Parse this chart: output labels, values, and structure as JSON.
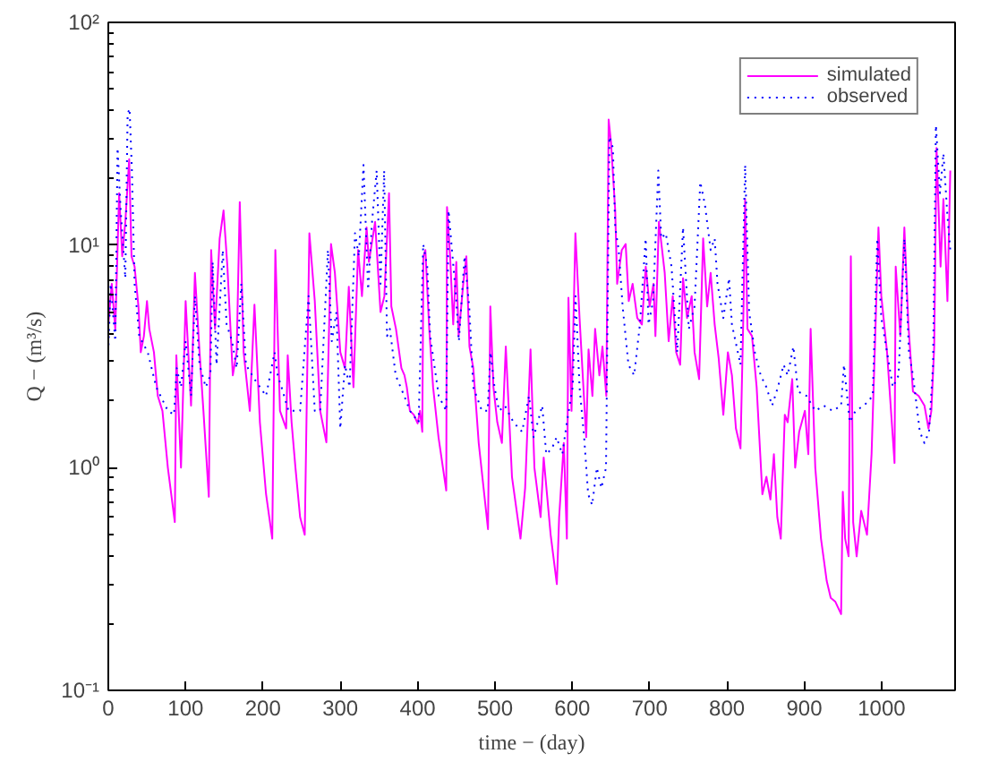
{
  "chart_data": {
    "type": "line",
    "xlabel": "time − (day)",
    "ylabel": "Q − (m³/s)",
    "log": "y",
    "grid": false,
    "legend": "top right",
    "xlim": [
      0,
      1095
    ],
    "xticks": [
      0,
      100,
      200,
      300,
      400,
      500,
      600,
      700,
      800,
      900,
      1000
    ],
    "ylim": [
      0.1,
      100
    ],
    "yticks": [
      {
        "value": 0.1,
        "label": "10⁻¹"
      },
      {
        "value": 1,
        "label": "10⁰"
      },
      {
        "value": 10,
        "label": "10¹"
      },
      {
        "value": 100,
        "label": "10²"
      }
    ],
    "series": [
      {
        "name": "simulated",
        "color": "#ff00ff",
        "line_style": "solid",
        "x": [
          0,
          4.5,
          9,
          14,
          18,
          22,
          27,
          30,
          34,
          39,
          42,
          46,
          50,
          53,
          59,
          64,
          70,
          77,
          86,
          88,
          94,
          100,
          107,
          112,
          118,
          123,
          130,
          133,
          138,
          144,
          149,
          154,
          161,
          166,
          170,
          175,
          183,
          189,
          196,
          204,
          212,
          216,
          222,
          230,
          232,
          237,
          242,
          248,
          254,
          260,
          267,
          274,
          282,
          288,
          293,
          300,
          306,
          311,
          317,
          323,
          328,
          334,
          337,
          345,
          352,
          357,
          363,
          366,
          372,
          379,
          383,
          386,
          390,
          395,
          400,
          403,
          406,
          407.5,
          410,
          415,
          420,
          427,
          437,
          438,
          442,
          446,
          450,
          453,
          459,
          463,
          467,
          472,
          479,
          491,
          494,
          498,
          503,
          509,
          514,
          522,
          533,
          539,
          546,
          551,
          559,
          563,
          572,
          580,
          583,
          589,
          593,
          595,
          599,
          604,
          609.4,
          615,
          618,
          621,
          626,
          629.5,
          635,
          639,
          644,
          647,
          650,
          655.5,
          658,
          664,
          669,
          673,
          678,
          684,
          690,
          695,
          700,
          705,
          707.5,
          712,
          719.5,
          724.6,
          729.9,
          734.3,
          739.5,
          743.2,
          748.4,
          754.4,
          758.1,
          764,
          769.2,
          774.4,
          778.9,
          784.1,
          789.3,
          795.3,
          801.2,
          806.4,
          811.6,
          817.5,
          821.3,
          823.5,
          826.5,
          832.4,
          838.4,
          845.8,
          851,
          856.2,
          860.7,
          865.1,
          869.6,
          874.8,
          878.5,
          884.4,
          888.2,
          893.4,
          900.8,
          905.2,
          908.2,
          914.2,
          921.6,
          929,
          934.2,
          940.2,
          947.6,
          949.8,
          952.8,
          957.3,
          960.2,
          963.2,
          967.7,
          973.6,
          981.1,
          987,
          992.2,
          995.9,
          999.6,
          1007,
          1016.7,
          1018.2,
          1024.2,
          1029.4,
          1034.6,
          1040.5,
          1048,
          1055.4,
          1060.6,
          1064.3,
          1068,
          1071,
          1076.2,
          1079.9,
          1085.1,
          1088.8
        ],
        "values": [
          4.4,
          6.7,
          4.2,
          17.1,
          8.9,
          12.7,
          24.3,
          8.9,
          8.0,
          5.3,
          3.3,
          3.9,
          5.6,
          4.2,
          3.3,
          2.1,
          1.8,
          1.0,
          0.57,
          3.2,
          1.0,
          5.6,
          1.9,
          7.5,
          3.3,
          1.8,
          0.74,
          9.5,
          4.2,
          10.7,
          14.3,
          8.0,
          2.6,
          3.3,
          15.6,
          3.3,
          1.8,
          5.4,
          1.6,
          0.76,
          0.48,
          9.5,
          1.8,
          1.5,
          3.2,
          1.6,
          1.0,
          0.6,
          0.5,
          11.3,
          5.6,
          1.8,
          1.3,
          10.1,
          7.5,
          3.3,
          2.8,
          6.5,
          2.3,
          9.5,
          5.9,
          12.0,
          8.4,
          12.7,
          5.0,
          5.9,
          17.1,
          5.3,
          4.2,
          2.8,
          2.6,
          2.3,
          1.8,
          1.73,
          1.58,
          1.8,
          1.45,
          8.9,
          9.5,
          4.2,
          2.3,
          1.37,
          0.79,
          14.8,
          8.9,
          4.4,
          8.4,
          3.9,
          6.7,
          8.9,
          3.5,
          2.8,
          1.29,
          0.53,
          5.3,
          2.3,
          1.6,
          1.29,
          3.5,
          0.91,
          0.48,
          0.81,
          3.4,
          1.0,
          0.6,
          1.11,
          0.5,
          0.3,
          0.6,
          1.29,
          0.48,
          5.8,
          1.8,
          11.3,
          4.7,
          2.1,
          1.37,
          3.4,
          2.1,
          4.2,
          2.6,
          3.5,
          2.1,
          36.6,
          29.0,
          14.3,
          6.7,
          9.5,
          10.1,
          5.6,
          6.7,
          4.7,
          4.4,
          8.0,
          5.3,
          6.7,
          3.9,
          12.7,
          7.5,
          3.7,
          5.9,
          3.3,
          2.9,
          7.1,
          4.7,
          5.9,
          3.3,
          2.5,
          10.7,
          5.3,
          7.5,
          4.4,
          3.1,
          1.73,
          3.3,
          2.6,
          1.5,
          1.22,
          5.0,
          16.1,
          4.2,
          3.9,
          2.3,
          0.76,
          0.91,
          0.72,
          1.15,
          0.6,
          0.48,
          1.73,
          1.6,
          2.5,
          1.0,
          1.45,
          1.8,
          1.15,
          4.2,
          1.0,
          0.48,
          0.31,
          0.26,
          0.25,
          0.22,
          0.78,
          0.48,
          0.4,
          8.9,
          0.57,
          0.4,
          0.64,
          0.5,
          1.15,
          4.4,
          12.0,
          5.9,
          3.3,
          1.05,
          8.0,
          3.9,
          12.0,
          4.4,
          2.2,
          2.1,
          1.9,
          1.5,
          1.8,
          3.5,
          27.3,
          8.0,
          16.1,
          5.6,
          21.6
        ]
      },
      {
        "name": "observed",
        "color": "#0000ff",
        "line_style": "dotted",
        "x": [
          0,
          3,
          9,
          12,
          16,
          22,
          25,
          27.5,
          30.5,
          34,
          40,
          51,
          62,
          77,
          85,
          88.4,
          94,
          100,
          107,
          112,
          118,
          126,
          132,
          135,
          140,
          148,
          153,
          160,
          166,
          172,
          178,
          189,
          204,
          215,
          219,
          224,
          233,
          248,
          259,
          267,
          274,
          284,
          289,
          295,
          300,
          306,
          312,
          319,
          324,
          330,
          336,
          341,
          347,
          352,
          356.7,
          360.4,
          364.1,
          371.6,
          382.7,
          390.1,
          401.3,
          407.2,
          412.4,
          416.2,
          427.3,
          437,
          440,
          444.4,
          449.6,
          453.3,
          460.7,
          466.7,
          471.9,
          483.1,
          490.5,
          494.2,
          499.4,
          505.3,
          512.8,
          523.9,
          535.1,
          544,
          550,
          561.1,
          566.3,
          573.7,
          579.7,
          587.1,
          593,
          600.5,
          604.2,
          609.4,
          615.3,
          620.5,
          625.7,
          631.7,
          637.6,
          643.6,
          648,
          652.5,
          655.5,
          660,
          665.1,
          672.6,
          680,
          687.4,
          694.9,
          698.6,
          704.5,
          711.2,
          715,
          720.9,
          728.3,
          735.7,
          743.2,
          750.7,
          758.1,
          765.5,
          771.5,
          778.9,
          784.1,
          787.8,
          795.3,
          802.7,
          806.4,
          817.5,
          823.5,
          828.7,
          836.1,
          843.6,
          851,
          858.4,
          865.9,
          873.3,
          878.5,
          885.9,
          891.9,
          903,
          914.2,
          925.3,
          936.5,
          947.6,
          951.3,
          958.8,
          966.2,
          977.3,
          988.5,
          994.4,
          999.6,
          1007,
          1014.5,
          1021.9,
          1029.4,
          1035.3,
          1040.5,
          1049.4,
          1055.4,
          1061.3,
          1066.5,
          1070.2,
          1075.4,
          1079.9,
          1085.1,
          1088.8
        ],
        "values": [
          3.3,
          6.7,
          3.7,
          27.3,
          14.3,
          7.1,
          38.8,
          41,
          21.6,
          6.7,
          3.9,
          3.3,
          2.3,
          1.8,
          1.73,
          2.8,
          2.3,
          3.7,
          2.1,
          5.9,
          2.9,
          2.3,
          2.6,
          8.4,
          2.9,
          9.5,
          4.4,
          3.7,
          2.8,
          6.7,
          2.9,
          2.5,
          2.1,
          3.3,
          2.6,
          2.3,
          1.8,
          1.8,
          5.9,
          1.8,
          1.8,
          9.5,
          3.7,
          5.0,
          1.5,
          2.9,
          2.3,
          11.3,
          8.9,
          22.9,
          6.3,
          12.7,
          21.6,
          6.7,
          21.6,
          3.9,
          4.2,
          2.6,
          2.1,
          1.8,
          1.6,
          10.1,
          8.0,
          3.9,
          2.1,
          1.8,
          14.3,
          9.5,
          5.9,
          3.7,
          8.9,
          5.3,
          2.3,
          1.8,
          1.8,
          3.3,
          2.3,
          1.8,
          1.9,
          1.6,
          1.45,
          2.1,
          1.37,
          1.9,
          1.15,
          1.22,
          1.37,
          1.15,
          1.6,
          2.3,
          5.9,
          2.3,
          1.37,
          0.76,
          0.68,
          1.0,
          0.81,
          1.0,
          30.7,
          27.3,
          12.0,
          9.5,
          5.3,
          2.9,
          2.6,
          4.4,
          10.7,
          4.4,
          5.6,
          21.6,
          10.7,
          11.3,
          8.0,
          3.3,
          12.0,
          4.2,
          5.3,
          19.2,
          15.2,
          9.5,
          10.7,
          6.7,
          4.7,
          7.1,
          4.4,
          2.9,
          22.9,
          5.0,
          3.3,
          2.6,
          2.3,
          1.9,
          2.3,
          2.9,
          2.6,
          3.5,
          2.2,
          2.1,
          1.8,
          1.9,
          1.8,
          1.9,
          2.9,
          1.6,
          1.8,
          1.9,
          2.1,
          10.7,
          4.7,
          3.3,
          2.3,
          2.6,
          10.7,
          3.3,
          2.6,
          1.45,
          1.29,
          1.45,
          2.9,
          34.5,
          17.1,
          25.8,
          13.5,
          9.5
        ]
      }
    ]
  }
}
